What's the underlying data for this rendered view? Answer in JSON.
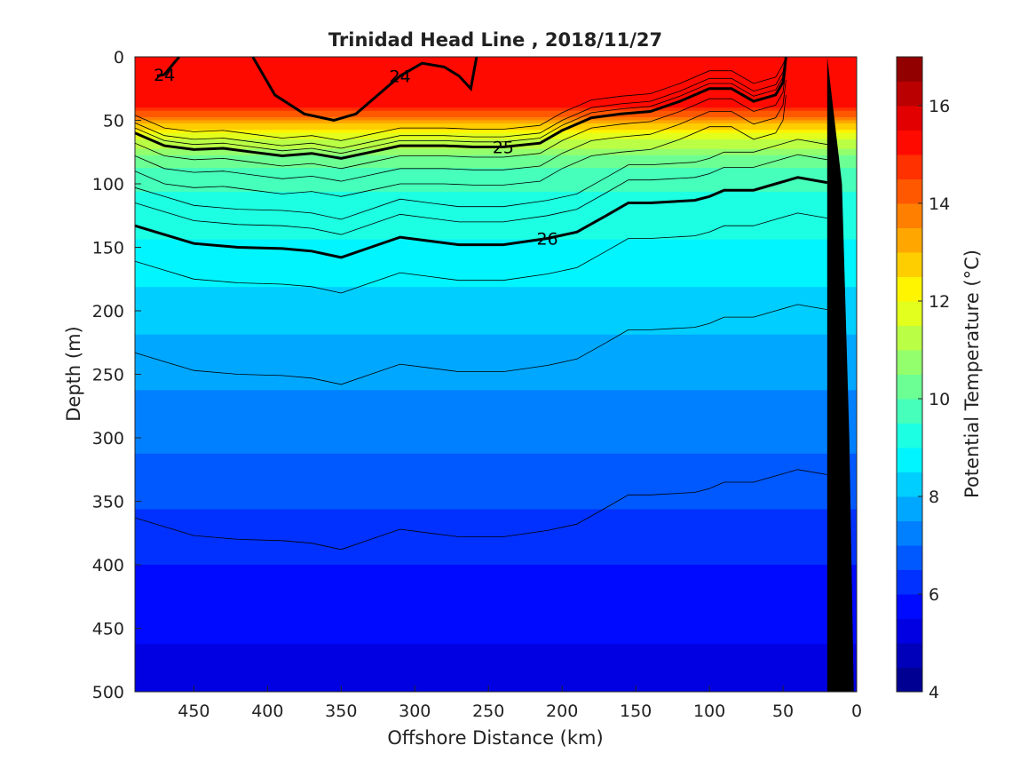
{
  "chart_data": {
    "type": "heatmap",
    "title": "Trinidad Head Line , 2018/11/27",
    "xlabel": "Offshore Distance (km)",
    "ylabel": "Depth (m)",
    "xlim": [
      490,
      0
    ],
    "ylim": [
      0,
      500
    ],
    "x_reversed": true,
    "y_reversed": true,
    "x_ticks": [
      450,
      400,
      350,
      300,
      250,
      200,
      150,
      100,
      50,
      0
    ],
    "y_ticks": [
      0,
      50,
      100,
      150,
      200,
      250,
      300,
      350,
      400,
      450,
      500
    ],
    "colorbar": {
      "label": "Potential Temperature (°C)",
      "range": [
        4,
        17
      ],
      "ticks": [
        4,
        6,
        8,
        10,
        12,
        14,
        16
      ],
      "levels": [
        4,
        4.5,
        5,
        5.5,
        6,
        6.5,
        7,
        7.5,
        8,
        8.5,
        9,
        9.5,
        10,
        10.5,
        11,
        11.5,
        12,
        12.5,
        13,
        13.5,
        14,
        14.5,
        15,
        15.5,
        16,
        16.5,
        17
      ],
      "colormap": "jet"
    },
    "temperature_profile": [
      {
        "depth": 0,
        "temperature": 15.5
      },
      {
        "depth": 40,
        "temperature": 15.0
      },
      {
        "depth": 60,
        "temperature": 12.0
      },
      {
        "depth": 80,
        "temperature": 10.3
      },
      {
        "depth": 100,
        "temperature": 9.6
      },
      {
        "depth": 150,
        "temperature": 8.9
      },
      {
        "depth": 200,
        "temperature": 8.2
      },
      {
        "depth": 250,
        "temperature": 7.6
      },
      {
        "depth": 300,
        "temperature": 7.1
      },
      {
        "depth": 350,
        "temperature": 6.6
      },
      {
        "depth": 400,
        "temperature": 6.0
      },
      {
        "depth": 450,
        "temperature": 5.6
      },
      {
        "depth": 500,
        "temperature": 5.2
      }
    ],
    "density_contours": [
      {
        "label": "24",
        "labeled": true,
        "points": [
          [
            475,
            15
          ],
          [
            470,
            14
          ],
          [
            460,
            0
          ]
        ]
      },
      {
        "label": "24",
        "labeled": true,
        "points": [
          [
            410,
            0
          ],
          [
            395,
            30
          ],
          [
            375,
            45
          ],
          [
            355,
            50
          ],
          [
            340,
            45
          ],
          [
            325,
            30
          ],
          [
            310,
            15
          ],
          [
            295,
            5
          ],
          [
            280,
            8
          ],
          [
            270,
            15
          ],
          [
            262,
            25
          ],
          [
            258,
            0
          ]
        ]
      },
      {
        "label": "25",
        "labeled": true,
        "points": [
          [
            490,
            60
          ],
          [
            470,
            70
          ],
          [
            450,
            73
          ],
          [
            430,
            72
          ],
          [
            410,
            75
          ],
          [
            390,
            78
          ],
          [
            370,
            76
          ],
          [
            350,
            80
          ],
          [
            330,
            75
          ],
          [
            310,
            70
          ],
          [
            280,
            70
          ],
          [
            260,
            71
          ],
          [
            240,
            71
          ],
          [
            215,
            68
          ],
          [
            200,
            58
          ],
          [
            180,
            48
          ],
          [
            160,
            45
          ],
          [
            140,
            43
          ],
          [
            120,
            35
          ],
          [
            100,
            25
          ],
          [
            85,
            25
          ],
          [
            70,
            35
          ],
          [
            55,
            30
          ],
          [
            50,
            20
          ],
          [
            48,
            0
          ]
        ]
      },
      {
        "label": "26",
        "labeled": true,
        "points": [
          [
            490,
            133
          ],
          [
            470,
            140
          ],
          [
            450,
            147
          ],
          [
            420,
            150
          ],
          [
            390,
            151
          ],
          [
            370,
            153
          ],
          [
            350,
            158
          ],
          [
            330,
            150
          ],
          [
            310,
            142
          ],
          [
            290,
            145
          ],
          [
            270,
            148
          ],
          [
            240,
            148
          ],
          [
            210,
            143
          ],
          [
            190,
            138
          ],
          [
            170,
            125
          ],
          [
            155,
            115
          ],
          [
            140,
            115
          ],
          [
            110,
            113
          ],
          [
            100,
            110
          ],
          [
            90,
            105
          ],
          [
            70,
            105
          ],
          [
            55,
            100
          ],
          [
            40,
            95
          ],
          [
            20,
            99
          ]
        ]
      }
    ],
    "seafloor": {
      "color": "#000000",
      "points": [
        [
          20,
          500
        ],
        [
          20,
          0
        ],
        [
          10,
          100
        ],
        [
          5,
          300
        ],
        [
          2,
          500
        ]
      ]
    }
  }
}
